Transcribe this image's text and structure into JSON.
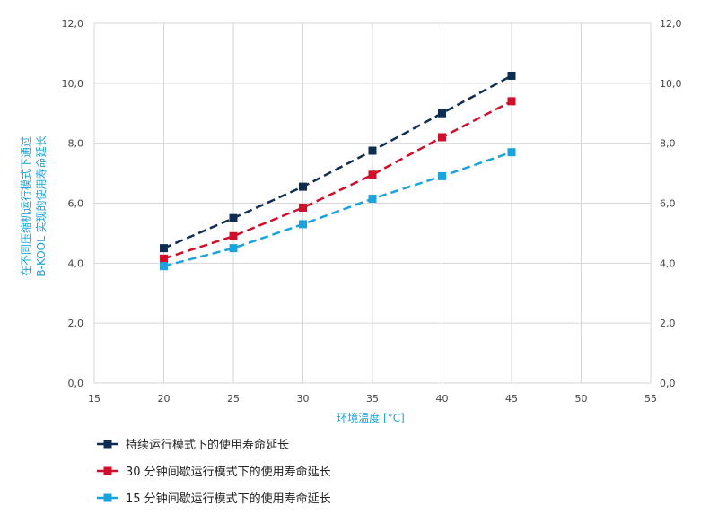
{
  "chart_data": {
    "type": "line",
    "title": "",
    "xlabel": "环境温度 [°C]",
    "ylabel_line1": "在不同压缩机运行模式下通过",
    "ylabel_line2": "B-KOOL 实现的使用寿命延长",
    "xlim": [
      15,
      55
    ],
    "ylim": [
      0,
      12
    ],
    "x_ticks": [
      "15",
      "20",
      "25",
      "30",
      "35",
      "40",
      "45",
      "50",
      "55"
    ],
    "y_ticks": [
      "0,0",
      "2,0",
      "4,0",
      "6,0",
      "8,0",
      "10,0",
      "12,0"
    ],
    "grid": true,
    "legend_position": "bottom-left",
    "x": [
      20,
      25,
      30,
      35,
      40,
      45
    ],
    "series": [
      {
        "name": "持续运行模式下的使用寿命延长",
        "color": "#0f2d52",
        "values": [
          4.5,
          5.5,
          6.55,
          7.75,
          9.0,
          10.25
        ]
      },
      {
        "name": "30 分钟间歇运行模式下的使用寿命延长",
        "color": "#d0102a",
        "values": [
          4.15,
          4.9,
          5.85,
          6.95,
          8.2,
          9.4
        ]
      },
      {
        "name": "15 分钟间歇运行模式下的使用寿命延长",
        "color": "#1aa3dd",
        "values": [
          3.9,
          4.5,
          5.3,
          6.15,
          6.9,
          7.7
        ]
      }
    ]
  }
}
